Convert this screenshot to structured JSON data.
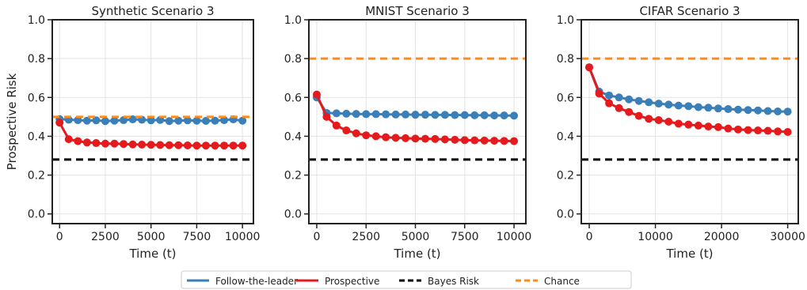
{
  "chart_data": [
    {
      "type": "line",
      "title": "Synthetic Scenario 3",
      "xlabel": "Time (t)",
      "ylabel": "Prospective Risk",
      "xlim": [
        -400,
        10600
      ],
      "ylim": [
        -0.05,
        1.0
      ],
      "xticks": [
        0,
        2500,
        5000,
        7500,
        10000
      ],
      "xtick_labels": [
        "0",
        "2500",
        "5000",
        "7500",
        "10000"
      ],
      "yticks": [
        0.0,
        0.2,
        0.4,
        0.6,
        0.8,
        1.0
      ],
      "ytick_labels": [
        "0.0",
        "0.2",
        "0.4",
        "0.6",
        "0.8",
        "1.0"
      ],
      "grid": true,
      "series": [
        {
          "name": "Follow-the-leader",
          "color": "#3a7fb8",
          "x": [
            0,
            500,
            1000,
            1500,
            2000,
            2500,
            3000,
            3500,
            4000,
            4500,
            5000,
            5500,
            6000,
            6500,
            7000,
            7500,
            8000,
            8500,
            9000,
            9500,
            10000
          ],
          "values": [
            0.488,
            0.485,
            0.483,
            0.48,
            0.482,
            0.478,
            0.48,
            0.483,
            0.487,
            0.485,
            0.482,
            0.484,
            0.478,
            0.48,
            0.482,
            0.48,
            0.479,
            0.48,
            0.483,
            0.487,
            0.48
          ]
        },
        {
          "name": "Prospective",
          "color": "#e41a1c",
          "x": [
            0,
            500,
            1000,
            1500,
            2000,
            2500,
            3000,
            3500,
            4000,
            4500,
            5000,
            5500,
            6000,
            6500,
            7000,
            7500,
            8000,
            8500,
            9000,
            9500,
            10000
          ],
          "values": [
            0.47,
            0.385,
            0.375,
            0.368,
            0.365,
            0.362,
            0.362,
            0.36,
            0.358,
            0.357,
            0.356,
            0.355,
            0.354,
            0.354,
            0.353,
            0.352,
            0.352,
            0.352,
            0.352,
            0.352,
            0.352
          ]
        },
        {
          "name": "Bayes Risk",
          "color": "#000000",
          "dashed": true,
          "constant": 0.28
        },
        {
          "name": "Chance",
          "color": "#ff8c1a",
          "dashed": true,
          "constant": 0.5
        }
      ]
    },
    {
      "type": "line",
      "title": "MNIST Scenario 3",
      "xlabel": "Time (t)",
      "ylabel": "",
      "xlim": [
        -400,
        10600
      ],
      "ylim": [
        -0.05,
        1.0
      ],
      "xticks": [
        0,
        2500,
        5000,
        7500,
        10000
      ],
      "xtick_labels": [
        "0",
        "2500",
        "5000",
        "7500",
        "10000"
      ],
      "yticks": [
        0.0,
        0.2,
        0.4,
        0.6,
        0.8,
        1.0
      ],
      "ytick_labels": [
        "0.0",
        "0.2",
        "0.4",
        "0.6",
        "0.8",
        "1.0"
      ],
      "grid": true,
      "series": [
        {
          "name": "Follow-the-leader",
          "color": "#3a7fb8",
          "x": [
            0,
            500,
            1000,
            1500,
            2000,
            2500,
            3000,
            3500,
            4000,
            4500,
            5000,
            5500,
            6000,
            6500,
            7000,
            7500,
            8000,
            8500,
            9000,
            9500,
            10000
          ],
          "values": [
            0.6,
            0.52,
            0.518,
            0.516,
            0.515,
            0.514,
            0.514,
            0.513,
            0.512,
            0.512,
            0.511,
            0.511,
            0.51,
            0.51,
            0.509,
            0.509,
            0.508,
            0.508,
            0.507,
            0.507,
            0.506
          ]
        },
        {
          "name": "Prospective",
          "color": "#e41a1c",
          "x": [
            0,
            500,
            1000,
            1500,
            2000,
            2500,
            3000,
            3500,
            4000,
            4500,
            5000,
            5500,
            6000,
            6500,
            7000,
            7500,
            8000,
            8500,
            9000,
            9500,
            10000
          ],
          "values": [
            0.615,
            0.5,
            0.455,
            0.43,
            0.415,
            0.405,
            0.4,
            0.395,
            0.392,
            0.39,
            0.388,
            0.387,
            0.386,
            0.384,
            0.382,
            0.38,
            0.379,
            0.378,
            0.377,
            0.376,
            0.375
          ]
        },
        {
          "name": "Bayes Risk",
          "color": "#000000",
          "dashed": true,
          "constant": 0.28
        },
        {
          "name": "Chance",
          "color": "#ff8c1a",
          "dashed": true,
          "constant": 0.8
        }
      ]
    },
    {
      "type": "line",
      "title": "CIFAR Scenario 3",
      "xlabel": "Time (t)",
      "ylabel": "",
      "xlim": [
        -1200,
        31600
      ],
      "ylim": [
        -0.05,
        1.0
      ],
      "xticks": [
        0,
        10000,
        20000,
        30000
      ],
      "xtick_labels": [
        "0",
        "10000",
        "20000",
        "30000"
      ],
      "yticks": [
        0.0,
        0.2,
        0.4,
        0.6,
        0.8,
        1.0
      ],
      "ytick_labels": [
        "0.0",
        "0.2",
        "0.4",
        "0.6",
        "0.8",
        "1.0"
      ],
      "grid": true,
      "series": [
        {
          "name": "Follow-the-leader",
          "color": "#3a7fb8",
          "x": [
            0,
            1500,
            3000,
            4500,
            6000,
            7500,
            9000,
            10500,
            12000,
            13500,
            15000,
            16500,
            18000,
            19500,
            21000,
            22500,
            24000,
            25500,
            27000,
            28500,
            30000
          ],
          "values": [
            0.755,
            0.63,
            0.61,
            0.6,
            0.59,
            0.582,
            0.575,
            0.568,
            0.563,
            0.558,
            0.555,
            0.55,
            0.547,
            0.543,
            0.54,
            0.537,
            0.535,
            0.533,
            0.53,
            0.528,
            0.527
          ]
        },
        {
          "name": "Prospective",
          "color": "#e41a1c",
          "x": [
            0,
            1500,
            3000,
            4500,
            6000,
            7500,
            9000,
            10500,
            12000,
            13500,
            15000,
            16500,
            18000,
            19500,
            21000,
            22500,
            24000,
            25500,
            27000,
            28500,
            30000
          ],
          "values": [
            0.755,
            0.62,
            0.57,
            0.545,
            0.525,
            0.505,
            0.49,
            0.483,
            0.475,
            0.465,
            0.46,
            0.455,
            0.45,
            0.447,
            0.44,
            0.435,
            0.432,
            0.43,
            0.428,
            0.425,
            0.422
          ]
        },
        {
          "name": "Bayes Risk",
          "color": "#000000",
          "dashed": true,
          "constant": 0.28
        },
        {
          "name": "Chance",
          "color": "#ff8c1a",
          "dashed": true,
          "constant": 0.8
        }
      ]
    }
  ],
  "legend": {
    "placement": "bottom-center",
    "items": [
      {
        "label": "Follow-the-leader",
        "color": "#3a7fb8",
        "dashed": false
      },
      {
        "label": "Prospective",
        "color": "#e41a1c",
        "dashed": false
      },
      {
        "label": "Bayes Risk",
        "color": "#000000",
        "dashed": true
      },
      {
        "label": "Chance",
        "color": "#ff8c1a",
        "dashed": true
      }
    ]
  }
}
